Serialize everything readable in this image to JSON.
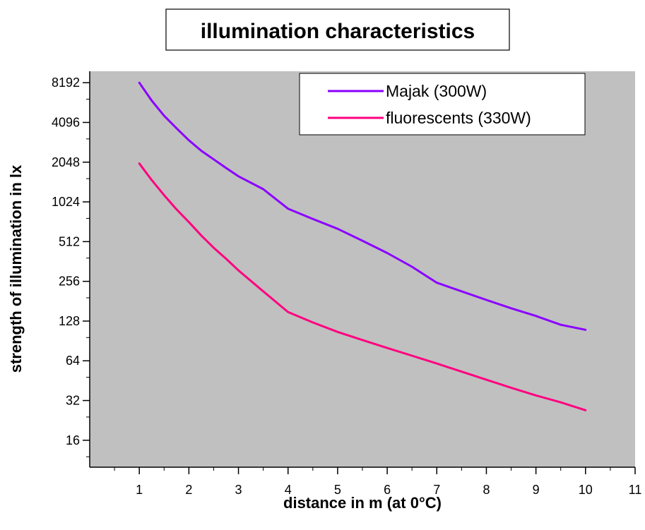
{
  "chart_data": {
    "type": "line",
    "title": "illumination characteristics",
    "xlabel": "distance in m (at 0°C)",
    "ylabel": "strength of illumination in lx",
    "xlim": [
      0,
      11
    ],
    "ylim": [
      10,
      10000
    ],
    "yscale": "log2",
    "x_ticks": [
      "1",
      "2",
      "3",
      "4",
      "5",
      "6",
      "7",
      "8",
      "9",
      "10",
      "11"
    ],
    "y_ticks": [
      "16",
      "32",
      "64",
      "128",
      "256",
      "512",
      "1024",
      "2048",
      "4096",
      "8192"
    ],
    "background_color": "#c0c0c0",
    "legend_position": "top-right",
    "series": [
      {
        "name": "Majak (300W)",
        "color": "#8b00ff",
        "x": [
          1,
          1.25,
          1.5,
          1.75,
          2,
          2.25,
          2.5,
          2.75,
          3,
          3.5,
          4,
          4.5,
          5,
          5.5,
          6,
          6.5,
          7,
          7.5,
          8,
          8.5,
          9,
          9.5,
          10
        ],
        "y": [
          8192,
          6000,
          4600,
          3700,
          3000,
          2500,
          2150,
          1850,
          1600,
          1280,
          910,
          760,
          640,
          520,
          420,
          330,
          250,
          215,
          185,
          160,
          140,
          120,
          110
        ]
      },
      {
        "name": "fluorescents (330W)",
        "color": "#ff007f",
        "x": [
          1,
          1.25,
          1.5,
          1.75,
          2,
          2.25,
          2.5,
          2.75,
          3,
          3.5,
          4,
          4.5,
          5,
          5.5,
          6,
          6.5,
          7,
          7.5,
          8,
          8.5,
          9,
          9.5,
          10
        ],
        "y": [
          2000,
          1500,
          1150,
          900,
          720,
          570,
          460,
          380,
          310,
          215,
          150,
          125,
          106,
          92,
          80,
          70,
          61,
          53,
          46,
          40,
          35,
          31,
          27
        ]
      }
    ]
  }
}
